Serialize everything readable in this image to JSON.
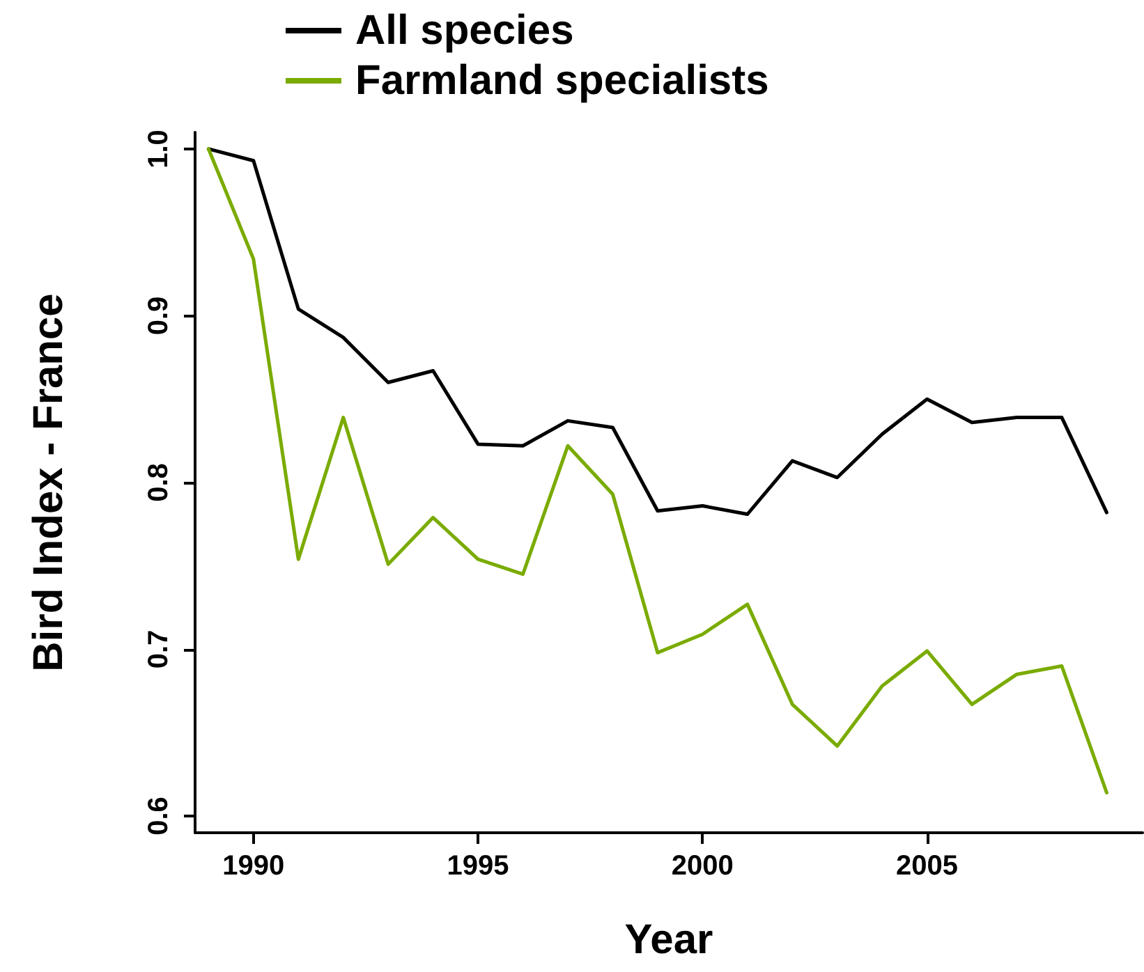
{
  "chart_data": {
    "type": "line",
    "xlabel": "Year",
    "ylabel": "Bird Index - France",
    "x": [
      1989,
      1990,
      1991,
      1992,
      1993,
      1994,
      1995,
      1996,
      1997,
      1998,
      1999,
      2000,
      2001,
      2002,
      2003,
      2004,
      2005,
      2006,
      2007,
      2008,
      2009
    ],
    "series": [
      {
        "name": "All species",
        "color": "#000000",
        "values": [
          1.0,
          0.993,
          0.904,
          0.887,
          0.86,
          0.867,
          0.823,
          0.822,
          0.837,
          0.833,
          0.783,
          0.786,
          0.781,
          0.813,
          0.803,
          0.829,
          0.85,
          0.836,
          0.839,
          0.839,
          0.782
        ]
      },
      {
        "name": "Farmland specialists",
        "color": "#7aab00",
        "values": [
          1.0,
          0.934,
          0.754,
          0.839,
          0.751,
          0.779,
          0.754,
          0.745,
          0.822,
          0.793,
          0.698,
          0.709,
          0.727,
          0.667,
          0.642,
          0.678,
          0.699,
          0.667,
          0.685,
          0.69,
          0.614
        ]
      }
    ],
    "xlim": [
      1988.7,
      2009.8
    ],
    "xticks": [
      1990,
      1995,
      2000,
      2005
    ],
    "ylim": [
      0.59,
      1.01
    ],
    "yticks": [
      {
        "value": 0.6,
        "label": "0.6"
      },
      {
        "value": 0.7,
        "label": "0.7"
      },
      {
        "value": 0.8,
        "label": "0.8"
      },
      {
        "value": 0.9,
        "label": "0.9"
      },
      {
        "value": 1.0,
        "label": "1.0"
      }
    ],
    "grid": false,
    "legend": "top",
    "marker": "none",
    "line_style": "solid"
  }
}
